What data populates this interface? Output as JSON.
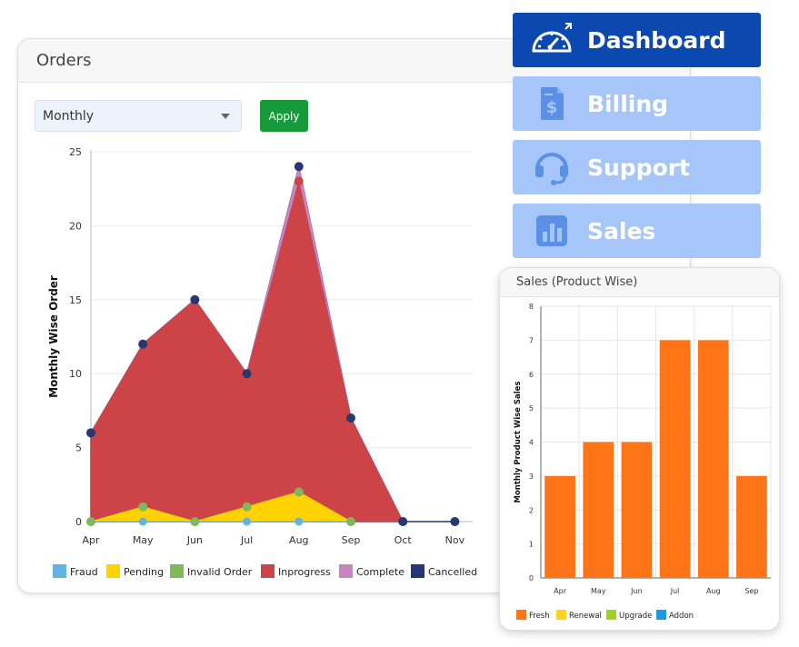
{
  "orders": {
    "title": "Orders",
    "period_value": "Monthly",
    "apply_label": "Apply"
  },
  "nav": {
    "items": [
      {
        "label": "Dashboard",
        "icon": "speedometer-icon",
        "active": true
      },
      {
        "label": "Billing",
        "icon": "invoice-icon",
        "active": false
      },
      {
        "label": "Support",
        "icon": "headset-icon",
        "active": false
      },
      {
        "label": "Sales",
        "icon": "bar-chart-icon",
        "active": false
      }
    ]
  },
  "sales": {
    "title": "Sales (Product Wise)"
  },
  "colors": {
    "nav_active": "#0b49b1",
    "nav_idle": "#a6c6fa",
    "apply": "#179a3a",
    "bar": "#ff7417"
  },
  "chart_data": [
    {
      "type": "area",
      "ylabel": "Monthly Wise Order",
      "xlabel": "",
      "categories": [
        "Apr",
        "May",
        "Jun",
        "Jul",
        "Aug",
        "Sep",
        "Oct",
        "Nov"
      ],
      "ylim": [
        0,
        25
      ],
      "yticks": [
        0,
        5,
        10,
        15,
        20,
        25
      ],
      "grid": true,
      "legend_position": "bottom",
      "series": [
        {
          "name": "Fraud",
          "color": "#62b3e2",
          "values": [
            0,
            0,
            0,
            0,
            0,
            0,
            null,
            null
          ]
        },
        {
          "name": "Pending",
          "color": "#ffd200",
          "values": [
            0,
            1,
            0,
            1,
            2,
            0,
            null,
            null
          ]
        },
        {
          "name": "Invalid Order",
          "color": "#7db85a",
          "values": [
            0,
            1,
            0,
            1,
            2,
            0,
            null,
            null
          ]
        },
        {
          "name": "Inprogress",
          "color": "#cc4447",
          "values": [
            6,
            12,
            15,
            10,
            23,
            7,
            0,
            null
          ]
        },
        {
          "name": "Complete",
          "color": "#c784c2",
          "values": [
            6,
            12,
            15,
            10,
            24,
            7,
            0,
            null
          ]
        },
        {
          "name": "Cancelled",
          "color": "#263773",
          "values": [
            6,
            12,
            15,
            10,
            24,
            7,
            0,
            0
          ]
        }
      ]
    },
    {
      "type": "bar",
      "ylabel": "Monthly Product Wise Sales",
      "xlabel": "",
      "categories": [
        "Apr",
        "May",
        "Jun",
        "Jul",
        "Aug",
        "Sep"
      ],
      "ylim": [
        0,
        8
      ],
      "yticks": [
        0,
        1,
        2,
        3,
        4,
        5,
        6,
        7,
        8
      ],
      "grid": true,
      "legend_position": "bottom",
      "series": [
        {
          "name": "Fresh",
          "color": "#ff7417",
          "values": [
            3,
            4,
            4,
            7,
            7,
            3
          ]
        },
        {
          "name": "Renewal",
          "color": "#ffd21f",
          "values": [
            0,
            0,
            0,
            0,
            0,
            0
          ]
        },
        {
          "name": "Upgrade",
          "color": "#9ad51f",
          "values": [
            0,
            0,
            0,
            0,
            0,
            0
          ]
        },
        {
          "name": "Addon",
          "color": "#1e9be0",
          "values": [
            0,
            0,
            0,
            0,
            0,
            0
          ]
        }
      ]
    }
  ]
}
